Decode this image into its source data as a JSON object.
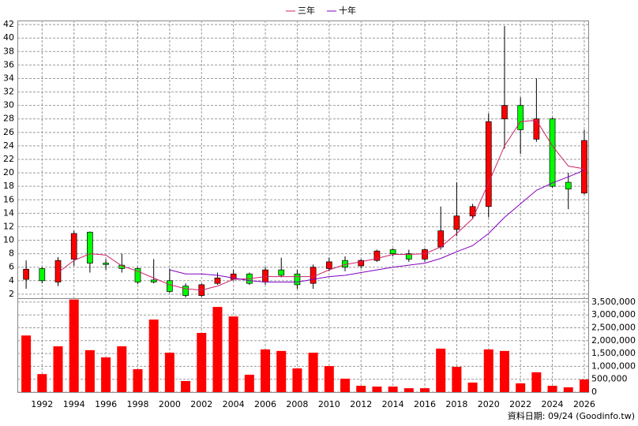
{
  "chart_data": [
    {
      "type": "candlestick",
      "x": [
        1991,
        1992,
        1993,
        1994,
        1995,
        1996,
        1997,
        1998,
        1999,
        2000,
        2001,
        2002,
        2003,
        2004,
        2005,
        2006,
        2007,
        2008,
        2009,
        2010,
        2011,
        2012,
        2013,
        2014,
        2015,
        2016,
        2017,
        2018,
        2019,
        2020,
        2021,
        2022,
        2023,
        2024,
        2025,
        2026
      ],
      "open": [
        4.2,
        5.8,
        3.8,
        7.2,
        11.2,
        6.6,
        6.3,
        5.8,
        4.1,
        4.0,
        3.2,
        1.8,
        3.6,
        4.2,
        5.0,
        3.8,
        5.6,
        5.0,
        3.6,
        5.8,
        7.0,
        6.2,
        7.0,
        8.6,
        8.0,
        7.2,
        9.0,
        11.6,
        13.6,
        15.0,
        28.0,
        30.0,
        25.0,
        28.0,
        18.6,
        17.0
      ],
      "high": [
        7.0,
        6.0,
        7.5,
        11.4,
        11.3,
        7.2,
        8.0,
        6.0,
        7.2,
        5.8,
        3.6,
        3.6,
        5.2,
        5.6,
        5.2,
        6.0,
        7.4,
        5.6,
        6.4,
        7.4,
        7.6,
        7.2,
        8.6,
        8.8,
        8.6,
        8.8,
        15.0,
        18.6,
        15.4,
        28.8,
        41.8,
        31.2,
        34.0,
        28.2,
        20.0,
        26.4
      ],
      "low": [
        2.8,
        3.6,
        3.2,
        6.2,
        5.2,
        5.6,
        5.2,
        3.5,
        3.6,
        2.2,
        1.5,
        1.6,
        3.4,
        4.0,
        3.4,
        3.4,
        4.5,
        2.8,
        2.8,
        5.4,
        5.4,
        5.8,
        6.8,
        7.6,
        6.8,
        6.8,
        8.6,
        10.6,
        13.2,
        13.4,
        23.6,
        22.8,
        24.6,
        17.8,
        14.6,
        16.8
      ],
      "close": [
        5.7,
        4.0,
        7.0,
        11.0,
        6.6,
        6.4,
        5.8,
        3.8,
        3.8,
        2.4,
        1.8,
        3.4,
        4.4,
        5.0,
        3.6,
        5.6,
        4.8,
        3.4,
        6.0,
        6.8,
        6.0,
        7.0,
        8.4,
        8.0,
        7.2,
        8.6,
        11.4,
        13.6,
        15.0,
        27.6,
        30.0,
        26.4,
        28.0,
        18.0,
        17.6,
        24.8
      ],
      "up_color": "#ff0000",
      "down_color": "#00ff00",
      "series": [
        {
          "name": "三年",
          "color": "#d0206a",
          "values": [
            null,
            null,
            5.2,
            7.0,
            8.0,
            7.8,
            6.2,
            5.4,
            4.4,
            3.4,
            2.8,
            2.6,
            3.2,
            4.2,
            4.3,
            4.6,
            4.6,
            4.6,
            4.6,
            5.6,
            6.4,
            6.8,
            7.3,
            7.9,
            7.9,
            8.0,
            9.0,
            11.0,
            13.2,
            18.5,
            24.0,
            27.6,
            27.8,
            24.0,
            21.0,
            20.6
          ]
        },
        {
          "name": "十年",
          "color": "#8000c0",
          "values": [
            null,
            null,
            null,
            null,
            null,
            null,
            null,
            null,
            null,
            5.6,
            5.0,
            5.0,
            4.8,
            4.4,
            4.0,
            3.8,
            3.8,
            3.8,
            4.2,
            4.6,
            4.8,
            5.2,
            5.6,
            6.0,
            6.3,
            6.6,
            7.3,
            8.3,
            9.2,
            11.0,
            13.4,
            15.4,
            17.4,
            18.5,
            19.4,
            20.4
          ]
        }
      ],
      "xlim": [
        1990.45,
        2026.25
      ],
      "ylim": [
        1.4,
        42.6
      ],
      "yticks": [
        2,
        4,
        6,
        8,
        10,
        12,
        14,
        16,
        18,
        20,
        22,
        24,
        26,
        28,
        30,
        32,
        34,
        36,
        38,
        40,
        42
      ],
      "grid": true
    },
    {
      "type": "bar",
      "x": [
        1991,
        1992,
        1993,
        1994,
        1995,
        1996,
        1997,
        1998,
        1999,
        2000,
        2001,
        2002,
        2003,
        2004,
        2005,
        2006,
        2007,
        2008,
        2009,
        2010,
        2011,
        2012,
        2013,
        2014,
        2015,
        2016,
        2017,
        2018,
        2019,
        2020,
        2021,
        2022,
        2023,
        2024,
        2025,
        2026
      ],
      "values": [
        2200000,
        700000,
        1780000,
        3600000,
        1630000,
        1350000,
        1780000,
        890000,
        2820000,
        1530000,
        430000,
        2300000,
        3310000,
        2940000,
        675000,
        1660000,
        1600000,
        920000,
        1530000,
        1010000,
        520000,
        245000,
        215000,
        215000,
        150000,
        150000,
        1690000,
        980000,
        370000,
        1660000,
        1600000,
        340000,
        770000,
        245000,
        185000,
        490000
      ],
      "color": "#ff0000",
      "xlim": [
        1990.45,
        2026.25
      ],
      "xticks": [
        1992,
        1994,
        1996,
        1998,
        2000,
        2002,
        2004,
        2006,
        2008,
        2010,
        2012,
        2014,
        2016,
        2018,
        2020,
        2022,
        2024,
        2026
      ],
      "ylim": [
        0,
        3650000
      ],
      "yticks": [
        0,
        {
          "value": 500000,
          "label": "500,000"
        },
        {
          "value": 1000000,
          "label": "1,000,000"
        },
        {
          "value": 1500000,
          "label": "1,500,000"
        },
        {
          "value": 2000000,
          "label": "2,000,000"
        },
        {
          "value": 2500000,
          "label": "2,500,000"
        },
        {
          "value": 3000000,
          "label": "3,000,000"
        },
        {
          "value": 3500000,
          "label": "3,500,000"
        }
      ],
      "grid": true
    }
  ],
  "footer": "資料日期: 09/24 (Goodinfo.tw)"
}
